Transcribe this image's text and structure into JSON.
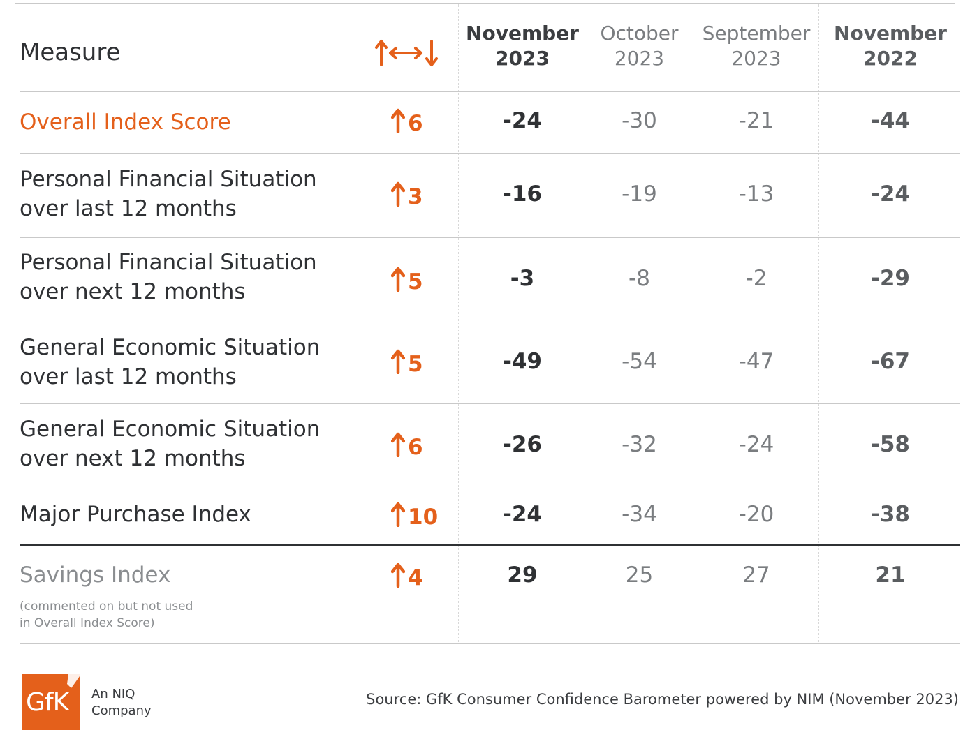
{
  "chart_data": {
    "type": "table",
    "header": {
      "measure": "Measure",
      "change_icon": "up-left-right-down-arrows-icon",
      "columns": [
        {
          "line1": "November",
          "line2": "2023"
        },
        {
          "line1": "October",
          "line2": "2023"
        },
        {
          "line1": "September",
          "line2": "2023"
        },
        {
          "line1": "November",
          "line2": "2022"
        }
      ]
    },
    "rows": [
      {
        "measure_line1": "Overall Index Score",
        "measure_line2": "",
        "change": "6",
        "direction": "up",
        "values": [
          "-24",
          "-30",
          "-21",
          "-44"
        ]
      },
      {
        "measure_line1": "Personal Financial Situation",
        "measure_line2": "over last 12 months",
        "change": "3",
        "direction": "up",
        "values": [
          "-16",
          "-19",
          "-13",
          "-24"
        ]
      },
      {
        "measure_line1": "Personal Financial Situation",
        "measure_line2": "over next 12 months",
        "change": "5",
        "direction": "up",
        "values": [
          "-3",
          "-8",
          "-2",
          "-29"
        ]
      },
      {
        "measure_line1": "General Economic Situation",
        "measure_line2": "over last 12 months",
        "change": "5",
        "direction": "up",
        "values": [
          "-49",
          "-54",
          "-47",
          "-67"
        ]
      },
      {
        "measure_line1": "General Economic Situation",
        "measure_line2": "over next 12 months",
        "change": "6",
        "direction": "up",
        "values": [
          "-26",
          "-32",
          "-24",
          "-58"
        ]
      },
      {
        "measure_line1": "Major Purchase Index",
        "measure_line2": "",
        "change": "10",
        "direction": "up",
        "values": [
          "-24",
          "-34",
          "-20",
          "-38"
        ]
      }
    ],
    "savings": {
      "measure": "Savings Index",
      "note_line1": "(commented on but not used",
      "note_line2": "in Overall Index Score)",
      "change": "4",
      "direction": "up",
      "values": [
        "29",
        "25",
        "27",
        "21"
      ]
    },
    "colors": {
      "accent": "#e4601b",
      "text_dark": "#2f3134",
      "text_dim": "#7a7d80",
      "savings_label": "#8a8d90"
    }
  },
  "footer": {
    "logo_text": "GfK",
    "tagline_line1": "An NIQ",
    "tagline_line2": "Company",
    "source": "Source: GfK Consumer Confidence Barometer powered by NIM (November 2023)"
  }
}
